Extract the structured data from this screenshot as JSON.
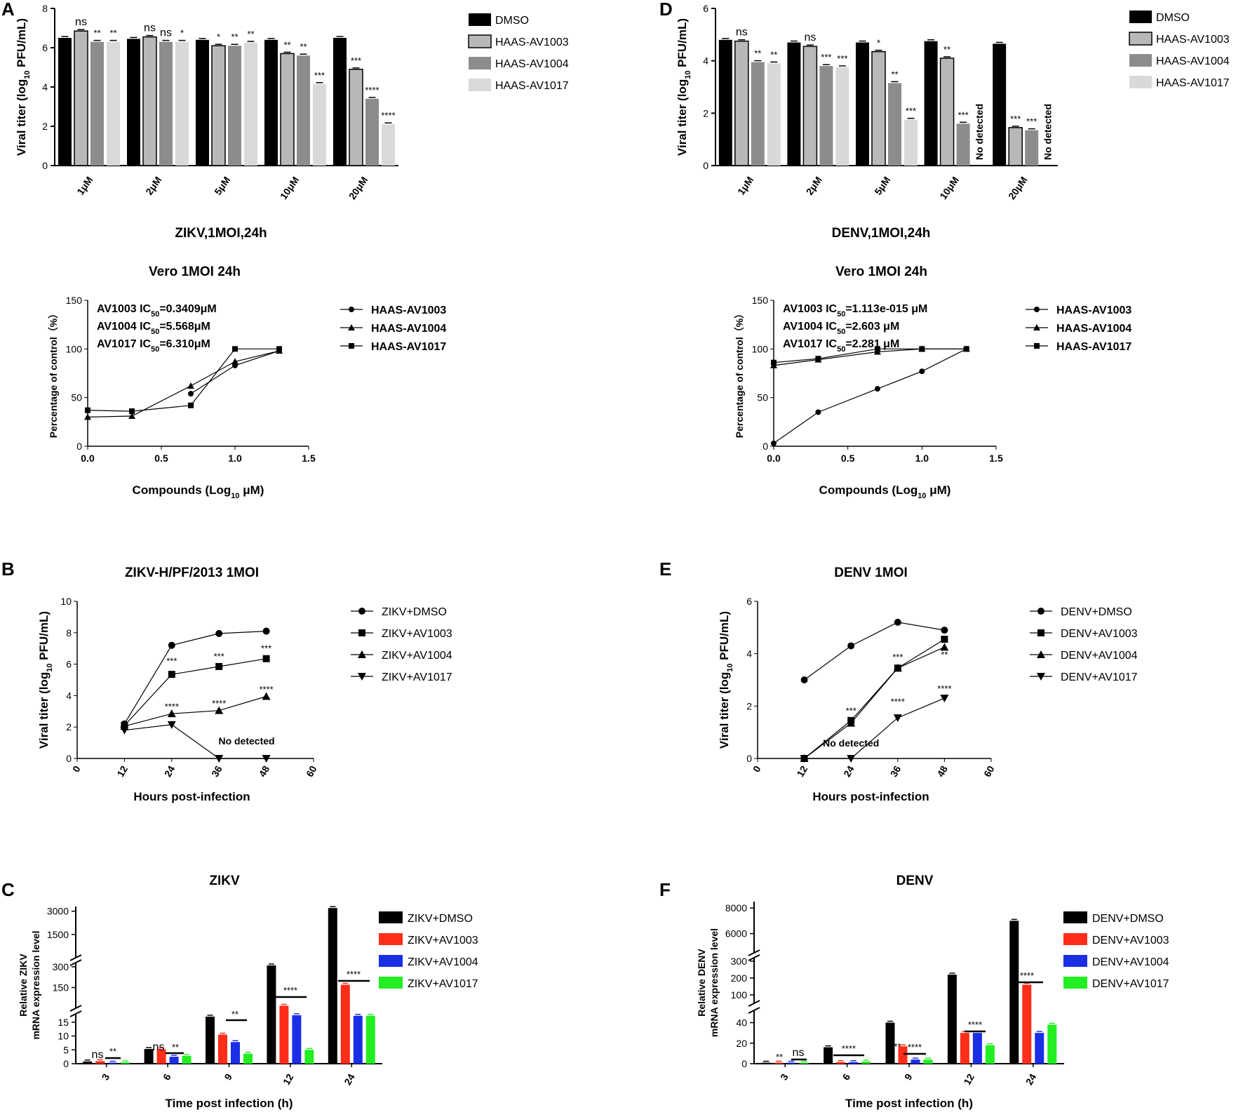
{
  "chart_data": [
    {
      "panel": "A",
      "type": "bar",
      "title": "ZIKV,1MOI,24h",
      "ylabel": "Viral titer (log10 PFU/mL)",
      "ylabel_pre": "Viral titer (log",
      "ylabel_sub": "10",
      "ylabel_post": " PFU/mL)",
      "ylim": [
        0,
        8
      ],
      "yticks": [
        "0",
        "2",
        "4",
        "6",
        "8"
      ],
      "categories": [
        "1μM",
        "2μM",
        "5μM",
        "10μM",
        "20μM"
      ],
      "series": [
        {
          "name": "DMSO",
          "values": [
            6.5,
            6.45,
            6.4,
            6.4,
            6.5
          ],
          "sig": [
            "",
            "",
            "",
            "",
            ""
          ]
        },
        {
          "name": "HAAS-AV1003",
          "values": [
            6.85,
            6.55,
            6.1,
            5.7,
            4.9
          ],
          "sig": [
            "ns",
            "ns",
            "*",
            "**",
            "***"
          ]
        },
        {
          "name": "HAAS-AV1004",
          "values": [
            6.3,
            6.3,
            6.1,
            5.6,
            3.4
          ],
          "sig": [
            "**",
            "ns",
            "**",
            "**",
            "****"
          ]
        },
        {
          "name": "HAAS-AV1017",
          "values": [
            6.3,
            6.3,
            6.25,
            4.15,
            2.1
          ],
          "sig": [
            "**",
            "*",
            "**",
            "***",
            "****"
          ]
        }
      ]
    },
    {
      "panel": "A2",
      "type": "scatter",
      "title": "Vero  1MOI  24h",
      "xlabel": "Compounds (Log10 μM)",
      "xlabel_pre": "Compounds (Log",
      "xlabel_sub": "10",
      "xlabel_post": " μM)",
      "ylabel": "Percentage of control（%）",
      "xlim": [
        0,
        1.5
      ],
      "ylim": [
        0,
        150
      ],
      "xticks": [
        "0.0",
        "0.5",
        "1.0",
        "1.5"
      ],
      "yticks": [
        "0",
        "50",
        "100",
        "150"
      ],
      "ic50": [
        {
          "pre": "AV1003 IC",
          "sub": "50",
          "post": "=0.3409μM"
        },
        {
          "pre": "AV1004 IC",
          "sub": "50",
          "post": "=5.568μM"
        },
        {
          "pre": "AV1017 IC",
          "sub": "50",
          "post": "=6.310μM"
        }
      ],
      "series": [
        {
          "name": "HAAS-AV1003",
          "marker": "circle",
          "x": [
            0.7,
            1.0,
            1.3
          ],
          "y": [
            54,
            83,
            98
          ]
        },
        {
          "name": "HAAS-AV1004",
          "marker": "triangle",
          "x": [
            0,
            0.3,
            0.7,
            1.0,
            1.3
          ],
          "y": [
            30,
            31,
            62,
            87,
            98
          ]
        },
        {
          "name": "HAAS-AV1017",
          "marker": "square",
          "x": [
            0,
            0.3,
            0.7,
            1.0,
            1.3
          ],
          "y": [
            37,
            36,
            42,
            100,
            100
          ]
        }
      ]
    },
    {
      "panel": "D",
      "type": "bar",
      "title": "DENV,1MOI,24h",
      "ylabel": "Viral titer (log10 PFU/mL)",
      "ylabel_pre": "Viral titer (log",
      "ylabel_sub": "10",
      "ylabel_post": " PFU/mL)",
      "ylim": [
        0,
        6
      ],
      "yticks": [
        "0",
        "2",
        "4",
        "6"
      ],
      "categories": [
        "1μM",
        "2μM",
        "5μM",
        "10μM",
        "20μM"
      ],
      "series": [
        {
          "name": "DMSO",
          "values": [
            4.8,
            4.7,
            4.7,
            4.75,
            4.65
          ],
          "sig": [
            "",
            "",
            "",
            "",
            ""
          ]
        },
        {
          "name": "HAAS-AV1003",
          "values": [
            4.75,
            4.55,
            4.35,
            4.1,
            1.45
          ],
          "sig": [
            "ns",
            "ns",
            "*",
            "**",
            "***"
          ]
        },
        {
          "name": "HAAS-AV1004",
          "values": [
            3.95,
            3.8,
            3.15,
            1.6,
            1.35
          ],
          "sig": [
            "**",
            "***",
            "**",
            "***",
            "***"
          ]
        },
        {
          "name": "HAAS-AV1017",
          "values": [
            3.9,
            3.75,
            1.75,
            0,
            0
          ],
          "sig": [
            "**",
            "***",
            "***",
            "No detected",
            "No detected"
          ]
        }
      ]
    },
    {
      "panel": "D2",
      "type": "scatter",
      "title": "Vero  1MOI  24h",
      "xlabel": "Compounds (Log10 μM)",
      "xlabel_pre": "Compounds (Log",
      "xlabel_sub": "10",
      "xlabel_post": " μM)",
      "ylabel": "Percentage of control（%）",
      "xlim": [
        0,
        1.5
      ],
      "ylim": [
        0,
        150
      ],
      "xticks": [
        "0.0",
        "0.5",
        "1.0",
        "1.5"
      ],
      "yticks": [
        "0",
        "50",
        "100",
        "150"
      ],
      "ic50": [
        {
          "pre": "AV1003 IC",
          "sub": "50",
          "post": "=1.113e-015 μM"
        },
        {
          "pre": "AV1004 IC",
          "sub": "50",
          "post": "=2.603 μM"
        },
        {
          "pre": "AV1017 IC",
          "sub": "50",
          "post": "=2.281 μM"
        }
      ],
      "series": [
        {
          "name": "HAAS-AV1003",
          "marker": "circle",
          "x": [
            0,
            0.3,
            0.7,
            1.0,
            1.3
          ],
          "y": [
            3,
            35,
            59,
            77,
            100
          ]
        },
        {
          "name": "HAAS-AV1004",
          "marker": "triangle",
          "x": [
            0,
            0.3,
            0.7,
            1.0,
            1.3
          ],
          "y": [
            83,
            89,
            97,
            100,
            100
          ]
        },
        {
          "name": "HAAS-AV1017",
          "marker": "square",
          "x": [
            0,
            0.3,
            0.7,
            1.0,
            1.3
          ],
          "y": [
            86,
            90,
            100,
            100,
            100
          ]
        }
      ]
    },
    {
      "panel": "B",
      "type": "line",
      "title": "ZIKV-H/PF/2013  1MOI",
      "xlabel": "Hours post-infection",
      "ylabel": "Viral titer (log10 PFU/mL)",
      "ylabel_pre": "Viral titer (log",
      "ylabel_sub": "10",
      "ylabel_post": " PFU/mL)",
      "xlim": [
        0,
        60
      ],
      "ylim": [
        0,
        10
      ],
      "xticks": [
        "0",
        "12",
        "24",
        "36",
        "48",
        "60"
      ],
      "yticks": [
        "0",
        "2",
        "4",
        "6",
        "8",
        "10"
      ],
      "x": [
        12,
        24,
        36,
        48
      ],
      "series": [
        {
          "name": "ZIKV+DMSO",
          "marker": "circle",
          "values": [
            2.2,
            7.2,
            7.95,
            8.1
          ]
        },
        {
          "name": "ZIKV+AV1003",
          "marker": "square",
          "values": [
            2.1,
            5.35,
            5.85,
            6.35
          ]
        },
        {
          "name": "ZIKV+AV1004",
          "marker": "triangle",
          "values": [
            2.05,
            2.85,
            3.05,
            3.95
          ]
        },
        {
          "name": "ZIKV+AV1017",
          "marker": "triangle-down",
          "values": [
            1.8,
            2.15,
            0,
            0
          ]
        }
      ],
      "annotations": [
        "***",
        "***",
        "***",
        "****",
        "****",
        "****",
        "No detected"
      ]
    },
    {
      "panel": "E",
      "type": "line",
      "title": "DENV  1MOI",
      "xlabel": "Hours post-infection",
      "ylabel": "Viral titer (log10 PFU/mL)",
      "ylabel_pre": "Viral titer (log",
      "ylabel_sub": "10",
      "ylabel_post": " PFU/mL)",
      "xlim": [
        0,
        60
      ],
      "ylim": [
        0,
        6
      ],
      "xticks": [
        "0",
        "12",
        "24",
        "36",
        "48",
        "60"
      ],
      "yticks": [
        "0",
        "2",
        "4",
        "6"
      ],
      "x": [
        12,
        24,
        36,
        48
      ],
      "series": [
        {
          "name": "DENV+DMSO",
          "marker": "circle",
          "values": [
            3.0,
            4.3,
            5.2,
            4.9
          ]
        },
        {
          "name": "DENV+AV1003",
          "marker": "square",
          "values": [
            0,
            1.45,
            3.45,
            4.55
          ]
        },
        {
          "name": "DENV+AV1004",
          "marker": "triangle",
          "values": [
            0,
            1.35,
            3.45,
            4.25
          ]
        },
        {
          "name": "DENV+AV1017",
          "marker": "triangle-down",
          "values": [
            0,
            0,
            1.55,
            2.3
          ]
        }
      ],
      "annotations": [
        "***",
        "***",
        "**",
        "****",
        "****",
        "No detected"
      ]
    },
    {
      "panel": "C",
      "type": "bar",
      "title": "ZIKV",
      "xlabel": "Time post infection (h)",
      "ylabel": "Relative ZIKV mRNA expression level",
      "ylabel_l1": "Relative ZIKV",
      "ylabel_l2": "mRNA expression level",
      "yticks": [
        "0",
        "5",
        "10",
        "15",
        "150",
        "300",
        "1500",
        "3000"
      ],
      "categories": [
        "3",
        "6",
        "9",
        "12",
        "24"
      ],
      "series": [
        {
          "name": "ZIKV+DMSO",
          "color": "#000000",
          "values": [
            0.8,
            5.3,
            17,
            310,
            3200
          ]
        },
        {
          "name": "ZIKV+AV1003",
          "color": "#ff2d1a",
          "values": [
            0.9,
            5.2,
            10.5,
            18.5,
            170
          ]
        },
        {
          "name": "ZIKV+AV1004",
          "color": "#1a2ee6",
          "values": [
            0.3,
            2.5,
            7.8,
            17.5,
            17.3
          ]
        },
        {
          "name": "ZIKV+AV1017",
          "color": "#22ee22",
          "values": [
            0.5,
            2.8,
            3.6,
            5.0,
            17.3
          ]
        }
      ],
      "sig": [
        "ns",
        "**",
        "ns",
        "**",
        "**",
        "****",
        "****"
      ]
    },
    {
      "panel": "F",
      "type": "bar",
      "title": "DENV",
      "xlabel": "Time post infection (h)",
      "ylabel": "Relative DENV mRNA expression level",
      "ylabel_l1": "Relative DENV",
      "ylabel_l2": "mRNA expression level",
      "yticks": [
        "0",
        "20",
        "40",
        "100",
        "200",
        "300",
        "6000",
        "8000"
      ],
      "categories": [
        "3",
        "6",
        "9",
        "12",
        "24"
      ],
      "series": [
        {
          "name": "DENV+DMSO",
          "color": "#000000",
          "values": [
            0.3,
            16,
            40,
            220,
            7000
          ]
        },
        {
          "name": "DENV+AV1003",
          "color": "#ff2d1a",
          "values": [
            0.2,
            1.5,
            17,
            30,
            160
          ]
        },
        {
          "name": "DENV+AV1004",
          "color": "#1a2ee6",
          "values": [
            0.2,
            1.5,
            4,
            30,
            30
          ]
        },
        {
          "name": "DENV+AV1017",
          "color": "#22ee22",
          "values": [
            0.2,
            2,
            4,
            18,
            38
          ]
        }
      ],
      "sig": [
        "**",
        "ns",
        "****",
        "***",
        "****",
        "****",
        "****"
      ]
    }
  ],
  "colors": {
    "dmso": "#000000",
    "av1003_bar": "#b8b8b8",
    "av1004_bar": "#8c8c8c",
    "av1017_bar": "#d9d9d9"
  }
}
